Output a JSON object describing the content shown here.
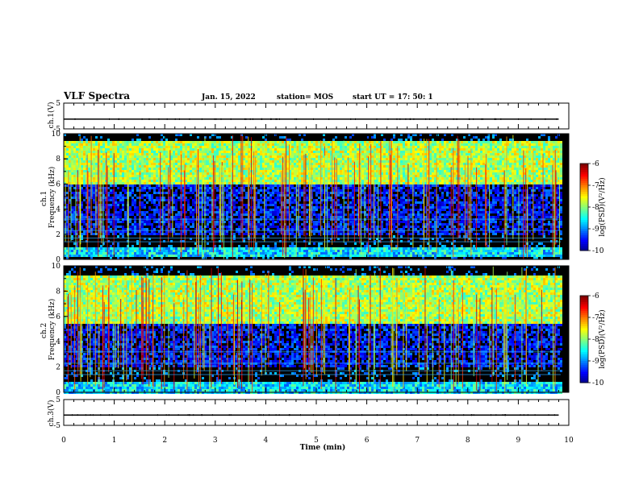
{
  "header": {
    "title": "VLF Spectra",
    "date": "Jan. 15, 2022",
    "station": "station= MOS",
    "start": "start  UT =   17: 50: 1"
  },
  "chart_data": [
    {
      "type": "line",
      "title": "",
      "xlabel": "",
      "ylabel": "ch.1(V)",
      "xlim": [
        0,
        10
      ],
      "ylim": [
        -5,
        5
      ],
      "y_ticks": [
        "5",
        "-5"
      ],
      "x": [
        0,
        9.8
      ],
      "values": [
        -1.2,
        -1.2
      ]
    },
    {
      "type": "heatmap",
      "ylabel": "ch.1\nFrequency (kHz)",
      "xlim": [
        0,
        10
      ],
      "ylim": [
        0,
        10
      ],
      "y_ticks": [
        "0",
        "2",
        "4",
        "6",
        "8",
        "10"
      ],
      "bands": [
        {
          "from": 6.0,
          "to": 9.6,
          "level": "high"
        },
        {
          "from": 2.0,
          "to": 6.0,
          "level": "low"
        },
        {
          "from": 0.2,
          "to": 1.0,
          "level": "medium"
        }
      ],
      "colorbar": {
        "label": "log(PSD)(V²/Hz)",
        "ticks": [
          "-6",
          "-7",
          "-8",
          "-9",
          "-10"
        ],
        "range": [
          -10,
          -6
        ]
      }
    },
    {
      "type": "heatmap",
      "ylabel": "ch.2\nFrequency (kHz)",
      "xlim": [
        0,
        10
      ],
      "ylim": [
        0,
        10
      ],
      "y_ticks": [
        "0",
        "2",
        "4",
        "6",
        "8",
        "10"
      ],
      "bands": [
        {
          "from": 5.5,
          "to": 9.3,
          "level": "high"
        },
        {
          "from": 2.0,
          "to": 5.5,
          "level": "low"
        },
        {
          "from": 0.0,
          "to": 1.0,
          "level": "medium"
        }
      ],
      "colorbar": {
        "label": "log(PSD)(V²/Hz)",
        "ticks": [
          "-6",
          "-7",
          "-8",
          "-9",
          "-10"
        ],
        "range": [
          -10,
          -6
        ]
      }
    },
    {
      "type": "line",
      "ylabel": "ch.3(V)",
      "xlabel": "Time (min)",
      "xlim": [
        0,
        10
      ],
      "ylim": [
        -5,
        5
      ],
      "y_ticks": [
        "5",
        "-5"
      ],
      "x_ticks": [
        "0",
        "1",
        "2",
        "3",
        "4",
        "5",
        "6",
        "7",
        "8",
        "9",
        "10"
      ],
      "x": [
        0,
        9.8
      ],
      "values": [
        -1.0,
        -1.0
      ]
    }
  ]
}
